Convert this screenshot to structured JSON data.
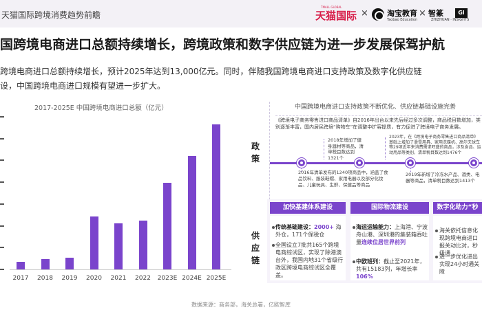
{
  "header": {
    "report_title": "天猫国际跨境消费趋势前瞻",
    "brand_tmall": "天猫国际",
    "brand_tmall_sub": "TMALL GLOBAL",
    "times": "×",
    "taobao_name": "淘宝教育",
    "taobao_sub": "Taobao Education",
    "zhijian_name_a": "智篆",
    "zhijian_badge": "GI",
    "zhijian_sub": "ZHIZHUAN · INSIGHTS"
  },
  "headline": "国跨境电商进口总额持续增长，跨境政策和数字供应链为进一步发展保驾护航",
  "intro": {
    "line1": "跨境电商进口总额持续增长，预计2025年达到13,000亿元。同时，伴随我国跨境电商进口支持政策及数字化供应链",
    "line2": "设，中国跨境电商进口规模有望进一步扩大。"
  },
  "chart_data": {
    "type": "bar",
    "title": "2017-2025E 中国跨境电商进口总额（亿元）",
    "categories": [
      "2017",
      "2018",
      "2019",
      "2020",
      "2021",
      "2022",
      "2023E",
      "2024E",
      "2025E"
    ],
    "values": [
      650,
      900,
      1050,
      4750,
      4150,
      4400,
      7750,
      10200,
      13000
    ],
    "ylim": [
      0,
      13700
    ],
    "color": "#7a44cc"
  },
  "source": "数据来源：商务部，海关总署，亿欧智库",
  "right": {
    "title": "中国跨境电商进口支持政策不断优化、供应链基础设施完善",
    "policy_label": "政策",
    "supply_label": "供应链",
    "policy_top": "《跨境电子商务零售进口商品清单》自2016年出台以来先后经过多次调整，商品税目数增加，类别逐渐丰富，国内居民跨境“购物车”在调整中扩容提质，有力促进了跨境电子商务发展。",
    "p2018": "2018年增加了健身器材等商品，清单税目数达到1321个",
    "p2023": "2023年，在《跨境电子商务零售进口商品清单》基础上增加了滑雪用具、家用洗碟机、高尔夫球车等29项近年来消费需求旺盛的商品，涉及食品、运动用品等类别，清单税目数达到1476个",
    "p2016": "2016年清单发布的1240项商品中，涵盖了食品饮料、服装鞋帽、家用电器以及部分化妆品、儿童玩具、生鲜、保健品等商品",
    "p2019": "2019年新增了冷冻水产品、酒类、电器等商品，清单税目数达到1413个",
    "cards": [
      {
        "head": "加快基建体系建设",
        "b1_title": "传统基础建设：",
        "b1_hl": "2000+",
        "b1_rest": "海外仓，171个保税仓",
        "b2": "全国设立7批共165个跨境电商综试区，实现了除港澳台外，我国内地31个省级行政区跨境电商综试区全覆盖。"
      },
      {
        "head": "国际物流建设",
        "b1_title": "海运运输能力：",
        "b1_text": "上海港、宁波舟山港、深圳港的集装箱吞吐量",
        "b1_hl": "连续位居世界前列",
        "b2_title": "中欧班列：",
        "b2_text": "截止至2021年，共有15183列，年增长率",
        "b2_hl": "106%"
      },
      {
        "head": "数字化助力“秒",
        "b1": "海关依托信息化现跨境电商进口报关动比对，秒级通",
        "b2": "进一步优化进出实现24小时通关障"
      }
    ]
  }
}
